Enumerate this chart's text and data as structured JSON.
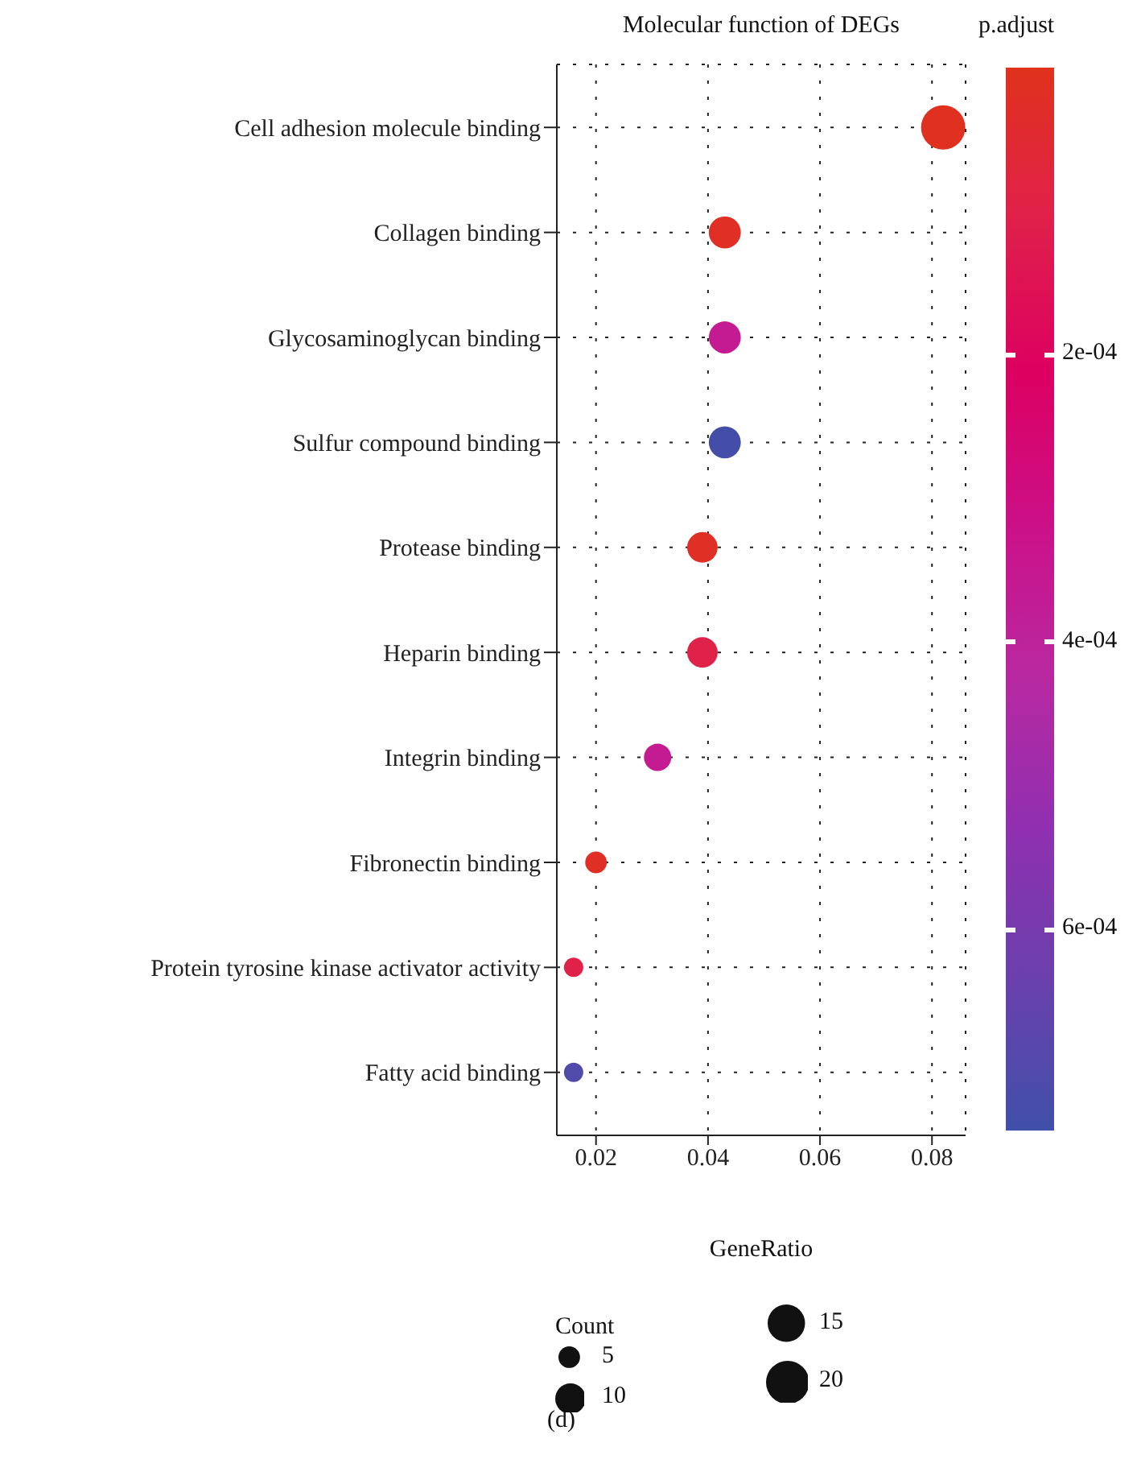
{
  "chart_data": {
    "type": "bubble",
    "title": "Molecular function of DEGs",
    "xlabel": "GeneRatio",
    "clabel": "p.adjust",
    "legend_title": "Count",
    "categories": [
      "Cell adhesion molecule binding",
      "Collagen binding",
      "Glycosaminoglycan binding",
      "Sulfur compound binding",
      "Protease binding",
      "Heparin binding",
      "Integrin binding",
      "Fibronectin binding",
      "Protein tyrosine kinase activator activity",
      "Fatty acid binding"
    ],
    "values": [
      0.082,
      0.043,
      0.043,
      0.043,
      0.039,
      0.039,
      0.031,
      0.02,
      0.016,
      0.016
    ],
    "sizes": [
      21,
      11,
      11,
      11,
      10,
      10,
      8,
      5,
      4,
      4
    ],
    "size_legend": [
      5,
      10,
      15,
      20
    ],
    "cvalues": [
      1e-05,
      2e-05,
      0.00036,
      0.00073,
      2e-05,
      0.0001,
      0.00036,
      2e-05,
      0.0001,
      0.0007
    ],
    "clim": [
      0,
      0.00074
    ],
    "cticks": [
      {
        "value": 0.0002,
        "label": "2e-04"
      },
      {
        "value": 0.0004,
        "label": "4e-04"
      },
      {
        "value": 0.0006,
        "label": "6e-04"
      }
    ],
    "xlim": [
      0.013,
      0.086
    ],
    "xticks": [
      0.02,
      0.04,
      0.06,
      0.08
    ],
    "grid": true,
    "marker": "circle",
    "orientation": "horizontal",
    "annotations": [
      "(d)"
    ]
  }
}
